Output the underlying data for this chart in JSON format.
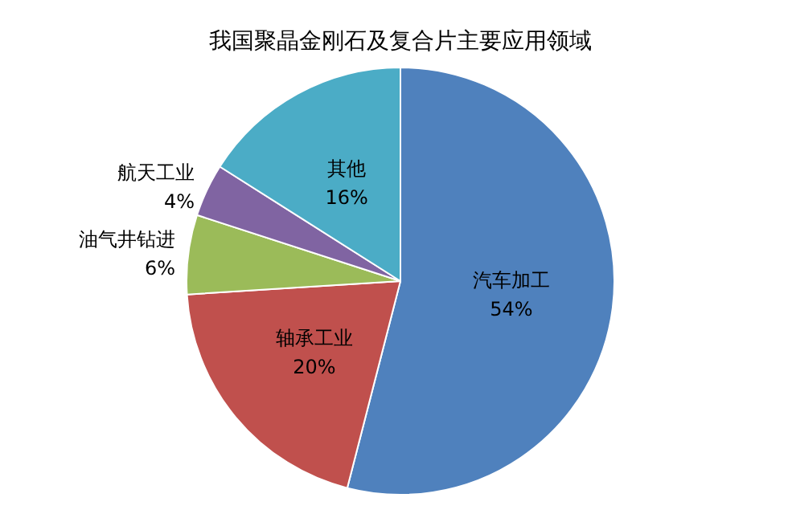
{
  "chart_data": {
    "type": "pie",
    "title": "我国聚晶金刚石及复合片主要应用领域",
    "categories": [
      "汽车加工",
      "轴承工业",
      "油气井钻进",
      "航天工业",
      "其他"
    ],
    "values": [
      54,
      20,
      6,
      4,
      16
    ],
    "colors": [
      "#4f81bd",
      "#c0504d",
      "#9bbb59",
      "#8064a2",
      "#4bacc6"
    ],
    "value_labels": [
      "54%",
      "20%",
      "6%",
      "4%",
      "16%"
    ],
    "legend": false
  }
}
